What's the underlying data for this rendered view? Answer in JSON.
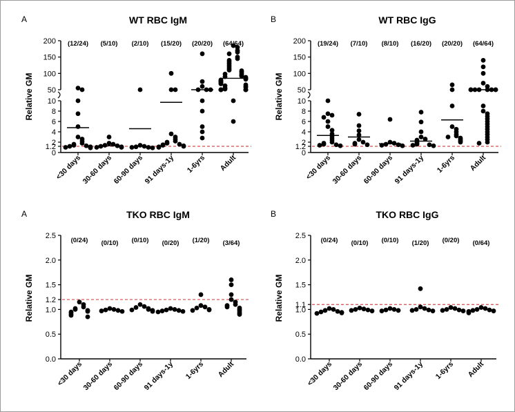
{
  "chart_data": [
    {
      "type": "scatter",
      "panel_label": "A",
      "title": "WT RBC IgM",
      "ylabel": "Relative GM",
      "y_scale": "broken",
      "y_ticks": [
        "0",
        "1.2",
        "2",
        "4",
        "6",
        "8",
        "10",
        "50",
        "100",
        "150",
        "200"
      ],
      "threshold": 1.2,
      "categories": [
        "<30 days",
        "30-60 days",
        "60-90 days",
        "91 days-1y",
        "1-6yrs",
        "Adult"
      ],
      "counts": [
        "(12/24)",
        "(5/10)",
        "(2/10)",
        "(15/20)",
        "(20/20)",
        "(64/64)"
      ],
      "means": [
        4.8,
        1.3,
        4.6,
        9.7,
        30,
        85
      ],
      "points": [
        [
          55,
          15,
          10,
          7.5,
          5,
          3,
          2.6,
          2.2,
          1.8,
          1.6,
          1.4,
          1.3,
          1.2,
          1.1,
          1.0,
          1.0,
          0.9
        ],
        [
          3.0,
          1.8,
          1.6,
          1.4,
          1.3,
          1.2,
          1.1,
          1.0,
          1.0
        ],
        [
          35,
          1.4,
          1.2,
          1.1,
          1.0,
          1.0,
          0.9
        ],
        [
          100,
          20,
          15,
          3.6,
          3.0,
          2.6,
          2.2,
          2.0,
          1.8,
          1.6,
          1.5,
          1.4,
          1.3,
          1.2,
          1.1,
          1.0
        ],
        [
          160,
          75,
          60,
          30,
          25,
          20,
          10,
          8,
          5,
          4,
          2.8
        ],
        [
          185,
          180,
          170,
          165,
          160,
          150,
          145,
          140,
          135,
          130,
          125,
          120,
          115,
          110,
          108,
          105,
          100,
          98,
          95,
          92,
          90,
          88,
          86,
          84,
          82,
          80,
          78,
          76,
          75,
          72,
          70,
          68,
          65,
          62,
          60,
          58,
          55,
          52,
          50,
          48,
          45,
          42,
          40,
          38,
          35,
          32,
          30,
          28,
          25,
          22,
          20,
          10,
          6
        ]
      ]
    },
    {
      "type": "scatter",
      "panel_label": "B",
      "title": "WT RBC IgG",
      "ylabel": "Relative GM",
      "y_scale": "broken",
      "y_ticks": [
        "0",
        "1.2",
        "2",
        "4",
        "6",
        "8",
        "10",
        "50",
        "100",
        "150",
        "200"
      ],
      "threshold": 1.2,
      "categories": [
        "<30 days",
        "30-60 days",
        "60-90 days",
        "91 days-1y",
        "1-6yrs",
        "Adult"
      ],
      "counts": [
        "(19/24)",
        "(7/10)",
        "(8/10)",
        "(16/20)",
        "(20/20)",
        "(64/64)"
      ],
      "means": [
        3.3,
        3.0,
        1.7,
        2.2,
        6.3,
        30
      ],
      "points": [
        [
          10,
          7.5,
          7.2,
          6.8,
          6.0,
          5.0,
          4.3,
          3.6,
          3.2,
          2.8,
          2.4,
          2.0,
          1.8,
          1.6,
          1.5,
          1.4,
          1.3
        ],
        [
          7.4,
          5.2,
          4.2,
          3.4,
          2.5,
          2.0,
          1.8,
          1.6,
          1.5
        ],
        [
          6.4,
          2.0,
          1.8,
          1.6,
          1.5,
          1.4,
          1.3
        ],
        [
          7.8,
          5.9,
          4.0,
          3.0,
          2.6,
          2.4,
          2.0,
          1.8,
          1.6,
          1.5,
          1.4,
          1.3
        ],
        [
          65,
          30,
          9.0,
          5.0,
          4.5,
          4.0,
          3.5,
          3.2,
          3.0,
          2.8,
          2.6,
          2.4,
          2.2,
          2.0
        ],
        [
          140,
          120,
          100,
          70,
          60,
          50,
          45,
          40,
          35,
          30,
          25,
          20,
          15,
          9.0,
          8.0,
          7.5,
          7.0,
          6.5,
          6.0,
          5.5,
          5.0,
          4.5,
          4.0,
          3.5,
          3.0,
          2.5,
          2.0,
          1.8
        ]
      ]
    },
    {
      "type": "scatter",
      "panel_label": "A",
      "title": "TKO RBC IgM",
      "ylabel": "Relative GM",
      "y_scale": "linear",
      "ylim": [
        0,
        2.5
      ],
      "y_ticks": [
        "0.0",
        "0.5",
        "1.0",
        "1.2",
        "1.5",
        "2.0",
        "2.5"
      ],
      "threshold": 1.2,
      "categories": [
        "<30 days",
        "30-60 days",
        "60-90 days",
        "91 days-1y",
        "1-6yrs",
        "Adult"
      ],
      "counts": [
        "(0/24)",
        "(0/10)",
        "(0/10)",
        "(0/20)",
        "(1/20)",
        "(3/64)"
      ],
      "points": [
        [
          1.15,
          1.1,
          1.05,
          1.02,
          1.0,
          0.98,
          0.96,
          0.95,
          0.93,
          0.9,
          0.88,
          0.85
        ],
        [
          1.02,
          1.0,
          0.99,
          0.98,
          0.97,
          0.96
        ],
        [
          1.1,
          1.06,
          1.04,
          1.02,
          1.0,
          0.99,
          0.98,
          0.96
        ],
        [
          1.02,
          1.0,
          0.99,
          0.98,
          0.97,
          0.96,
          0.95
        ],
        [
          1.3,
          1.08,
          1.05,
          1.03,
          1.0,
          0.99,
          0.98
        ],
        [
          1.6,
          1.5,
          1.3,
          1.2,
          1.15,
          1.1,
          1.08,
          1.05,
          1.03,
          1.0,
          0.98,
          0.95,
          0.92,
          0.9
        ]
      ]
    },
    {
      "type": "scatter",
      "panel_label": "B",
      "title": "TKO RBC IgG",
      "ylabel": "Relative GM",
      "y_scale": "linear",
      "ylim": [
        0,
        2.5
      ],
      "y_ticks": [
        "0.0",
        "0.5",
        "1.0",
        "1.1",
        "1.5",
        "2.0",
        "2.5"
      ],
      "threshold": 1.1,
      "categories": [
        "<30 days",
        "30-60 days",
        "60-90 days",
        "91 days-1y",
        "1-6yrs",
        "Adult"
      ],
      "counts": [
        "(0/24)",
        "(0/10)",
        "(0/10)",
        "(1/20)",
        "(0/20)",
        "(0/64)"
      ],
      "points": [
        [
          1.02,
          1.0,
          0.98,
          0.96,
          0.95,
          0.94,
          0.93,
          0.92
        ],
        [
          1.03,
          1.01,
          1.0,
          0.99,
          0.98,
          0.97
        ],
        [
          1.02,
          1.0,
          0.99,
          0.98,
          0.97
        ],
        [
          1.42,
          1.05,
          1.02,
          1.0,
          0.99,
          0.98,
          0.97
        ],
        [
          1.04,
          1.02,
          1.0,
          0.99,
          0.98,
          0.97
        ],
        [
          1.04,
          1.02,
          1.0,
          0.99,
          0.98,
          0.97,
          0.96,
          0.95,
          0.93
        ]
      ]
    }
  ]
}
